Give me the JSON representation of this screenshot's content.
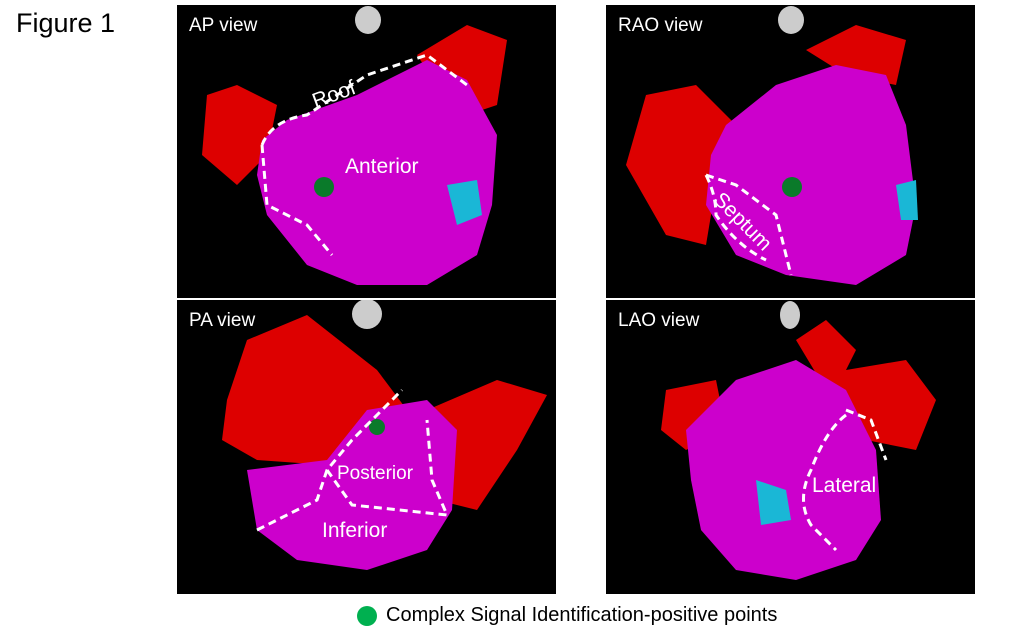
{
  "figure_title": "Figure 1",
  "panels": [
    {
      "view": "AP view",
      "regions": [
        "Roof",
        "Anterior"
      ]
    },
    {
      "view": "RAO view",
      "regions": [
        "Septum"
      ]
    },
    {
      "view": "PA view",
      "regions": [
        "Posterior",
        "Inferior"
      ]
    },
    {
      "view": "LAO view",
      "regions": [
        "Lateral"
      ]
    }
  ],
  "legend": {
    "label": "Complex Signal Identification-positive points",
    "color": "#00b050"
  },
  "colors": {
    "tissue": "#cc00cc",
    "scar": "#dd0000",
    "gray": "#9a9a9a",
    "background": "#000000"
  }
}
